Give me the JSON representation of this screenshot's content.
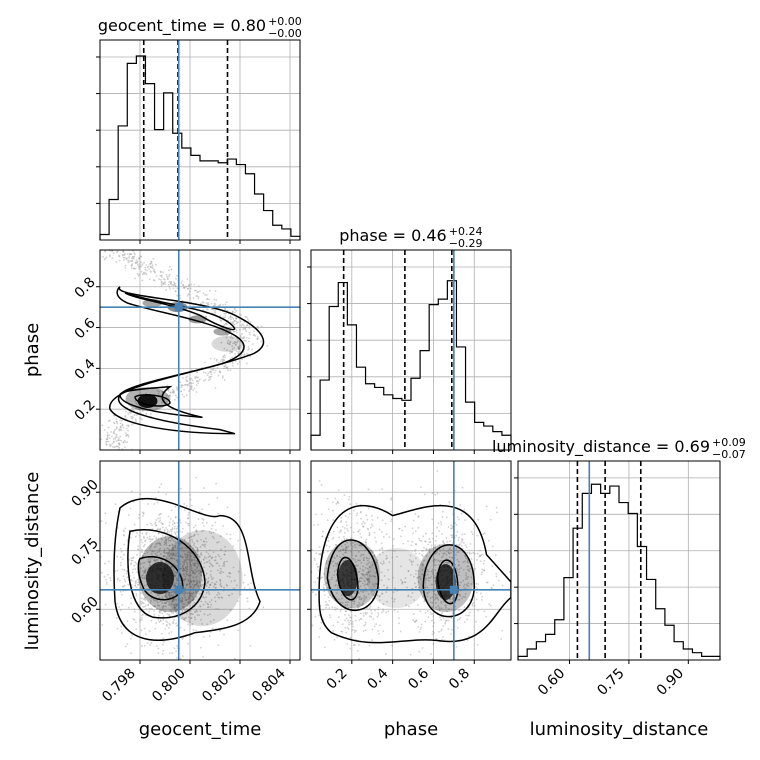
{
  "chart_data": {
    "type": "corner",
    "colors": {
      "truth": "#4682b4",
      "line": "#000000",
      "grid": "#b0b0b0",
      "scatter": "#9a9a9a"
    },
    "parameters": [
      {
        "name": "geocent_time",
        "label": "geocent_time",
        "range": [
          0.7964,
          0.8044
        ],
        "ticks": [
          0.798,
          0.8,
          0.802,
          0.804
        ],
        "tick_labels": [
          "0.798",
          "0.800",
          "0.802",
          "0.804"
        ],
        "truth": 0.79955,
        "title": {
          "main": "geocent_time = 0.80",
          "sup": "+0.00",
          "sub": "−0.00"
        },
        "quantiles": [
          0.79815,
          0.79952,
          0.8015
        ],
        "hist": [
          0.03,
          0.22,
          0.62,
          0.96,
          1.0,
          0.85,
          0.6,
          0.8,
          0.58,
          0.5,
          0.46,
          0.43,
          0.43,
          0.42,
          0.44,
          0.41,
          0.36,
          0.25,
          0.16,
          0.08,
          0.06,
          0.02
        ]
      },
      {
        "name": "phase",
        "label": "phase",
        "range": [
          0.0,
          0.98
        ],
        "ticks": [
          0.2,
          0.4,
          0.6,
          0.8
        ],
        "tick_labels": [
          "0.2",
          "0.4",
          "0.6",
          "0.8"
        ],
        "truth": 0.7,
        "title": {
          "main": "phase = 0.46",
          "sup": "+0.24",
          "sub": "−0.29"
        },
        "quantiles": [
          0.16,
          0.46,
          0.69
        ],
        "hist": [
          0.08,
          0.38,
          0.78,
          0.91,
          0.68,
          0.45,
          0.36,
          0.34,
          0.3,
          0.28,
          0.27,
          0.39,
          0.54,
          0.79,
          0.82,
          0.92,
          0.56,
          0.26,
          0.15,
          0.13,
          0.1,
          0.08
        ]
      },
      {
        "name": "luminosity_distance",
        "label": "luminosity_distance",
        "range": [
          0.47,
          0.98
        ],
        "ticks": [
          0.6,
          0.75,
          0.9
        ],
        "tick_labels": [
          "0.60",
          "0.75",
          "0.90"
        ],
        "truth": 0.65,
        "title": {
          "main": "luminosity_distance = 0.69",
          "sup": "+0.09",
          "sub": "−0.07"
        },
        "quantiles": [
          0.62,
          0.69,
          0.78
        ],
        "hist": [
          0.02,
          0.06,
          0.1,
          0.14,
          0.22,
          0.45,
          0.72,
          0.91,
          0.96,
          0.91,
          0.95,
          0.86,
          0.8,
          0.62,
          0.44,
          0.28,
          0.19,
          0.1,
          0.06,
          0.04,
          0.02,
          0.02
        ]
      }
    ]
  }
}
